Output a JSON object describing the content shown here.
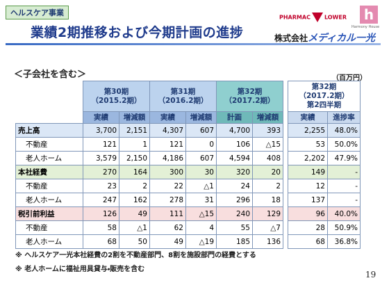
{
  "header": {
    "tag": "ヘルスケア事業",
    "title": "業績2期推移および今期計画の進捗",
    "logo": {
      "pharmacy": "PHARMAC",
      "flower": "LOWER",
      "harmony": "Harmony House",
      "company_prefix": "株式会社",
      "company_name": "メディカル一光"
    }
  },
  "scope": "＜子会社を含む＞",
  "unit": "（百万円）",
  "table": {
    "groups": [
      {
        "lines": [
          "第30期",
          "（2015.2期）"
        ],
        "sub": [
          "実績",
          "増減額"
        ]
      },
      {
        "lines": [
          "第31期",
          "（2016.2期）"
        ],
        "sub": [
          "実績",
          "増減額"
        ]
      },
      {
        "lines": [
          "第32期",
          "（2017.2期）"
        ],
        "sub": [
          "計画",
          "増減額"
        ]
      },
      {
        "lines": [
          "第32期",
          "（2017.2期）",
          "第2四半期"
        ],
        "sub": [
          "実績",
          "進捗率"
        ]
      }
    ],
    "rows": [
      [
        "売上高",
        "3,700",
        "2,151",
        "4,307",
        "607",
        "4,700",
        "393",
        "2,255",
        "48.0%"
      ],
      [
        "不動産",
        "121",
        "1",
        "121",
        "0",
        "106",
        "△15",
        "53",
        "50.0%"
      ],
      [
        "老人ホーム",
        "3,579",
        "2,150",
        "4,186",
        "607",
        "4,594",
        "408",
        "2,202",
        "47.9%"
      ],
      [
        "本社経費",
        "270",
        "164",
        "300",
        "30",
        "320",
        "20",
        "149",
        "-"
      ],
      [
        "不動産",
        "23",
        "2",
        "22",
        "△1",
        "24",
        "2",
        "12",
        "-"
      ],
      [
        "老人ホーム",
        "247",
        "162",
        "278",
        "31",
        "296",
        "18",
        "137",
        "-"
      ],
      [
        "税引前利益",
        "126",
        "49",
        "111",
        "△15",
        "240",
        "129",
        "96",
        "40.0%"
      ],
      [
        "不動産",
        "58",
        "△1",
        "62",
        "4",
        "55",
        "△7",
        "28",
        "50.9%"
      ],
      [
        "老人ホーム",
        "68",
        "50",
        "49",
        "△19",
        "185",
        "136",
        "68",
        "36.8%"
      ]
    ]
  },
  "notes": [
    "※ ヘルスケア一光本社経費の2割を不動産部門、8割を施設部門の経費とする",
    "※ 老人ホームに福祉用具貸与・販売を含む"
  ],
  "page_number": "19"
}
